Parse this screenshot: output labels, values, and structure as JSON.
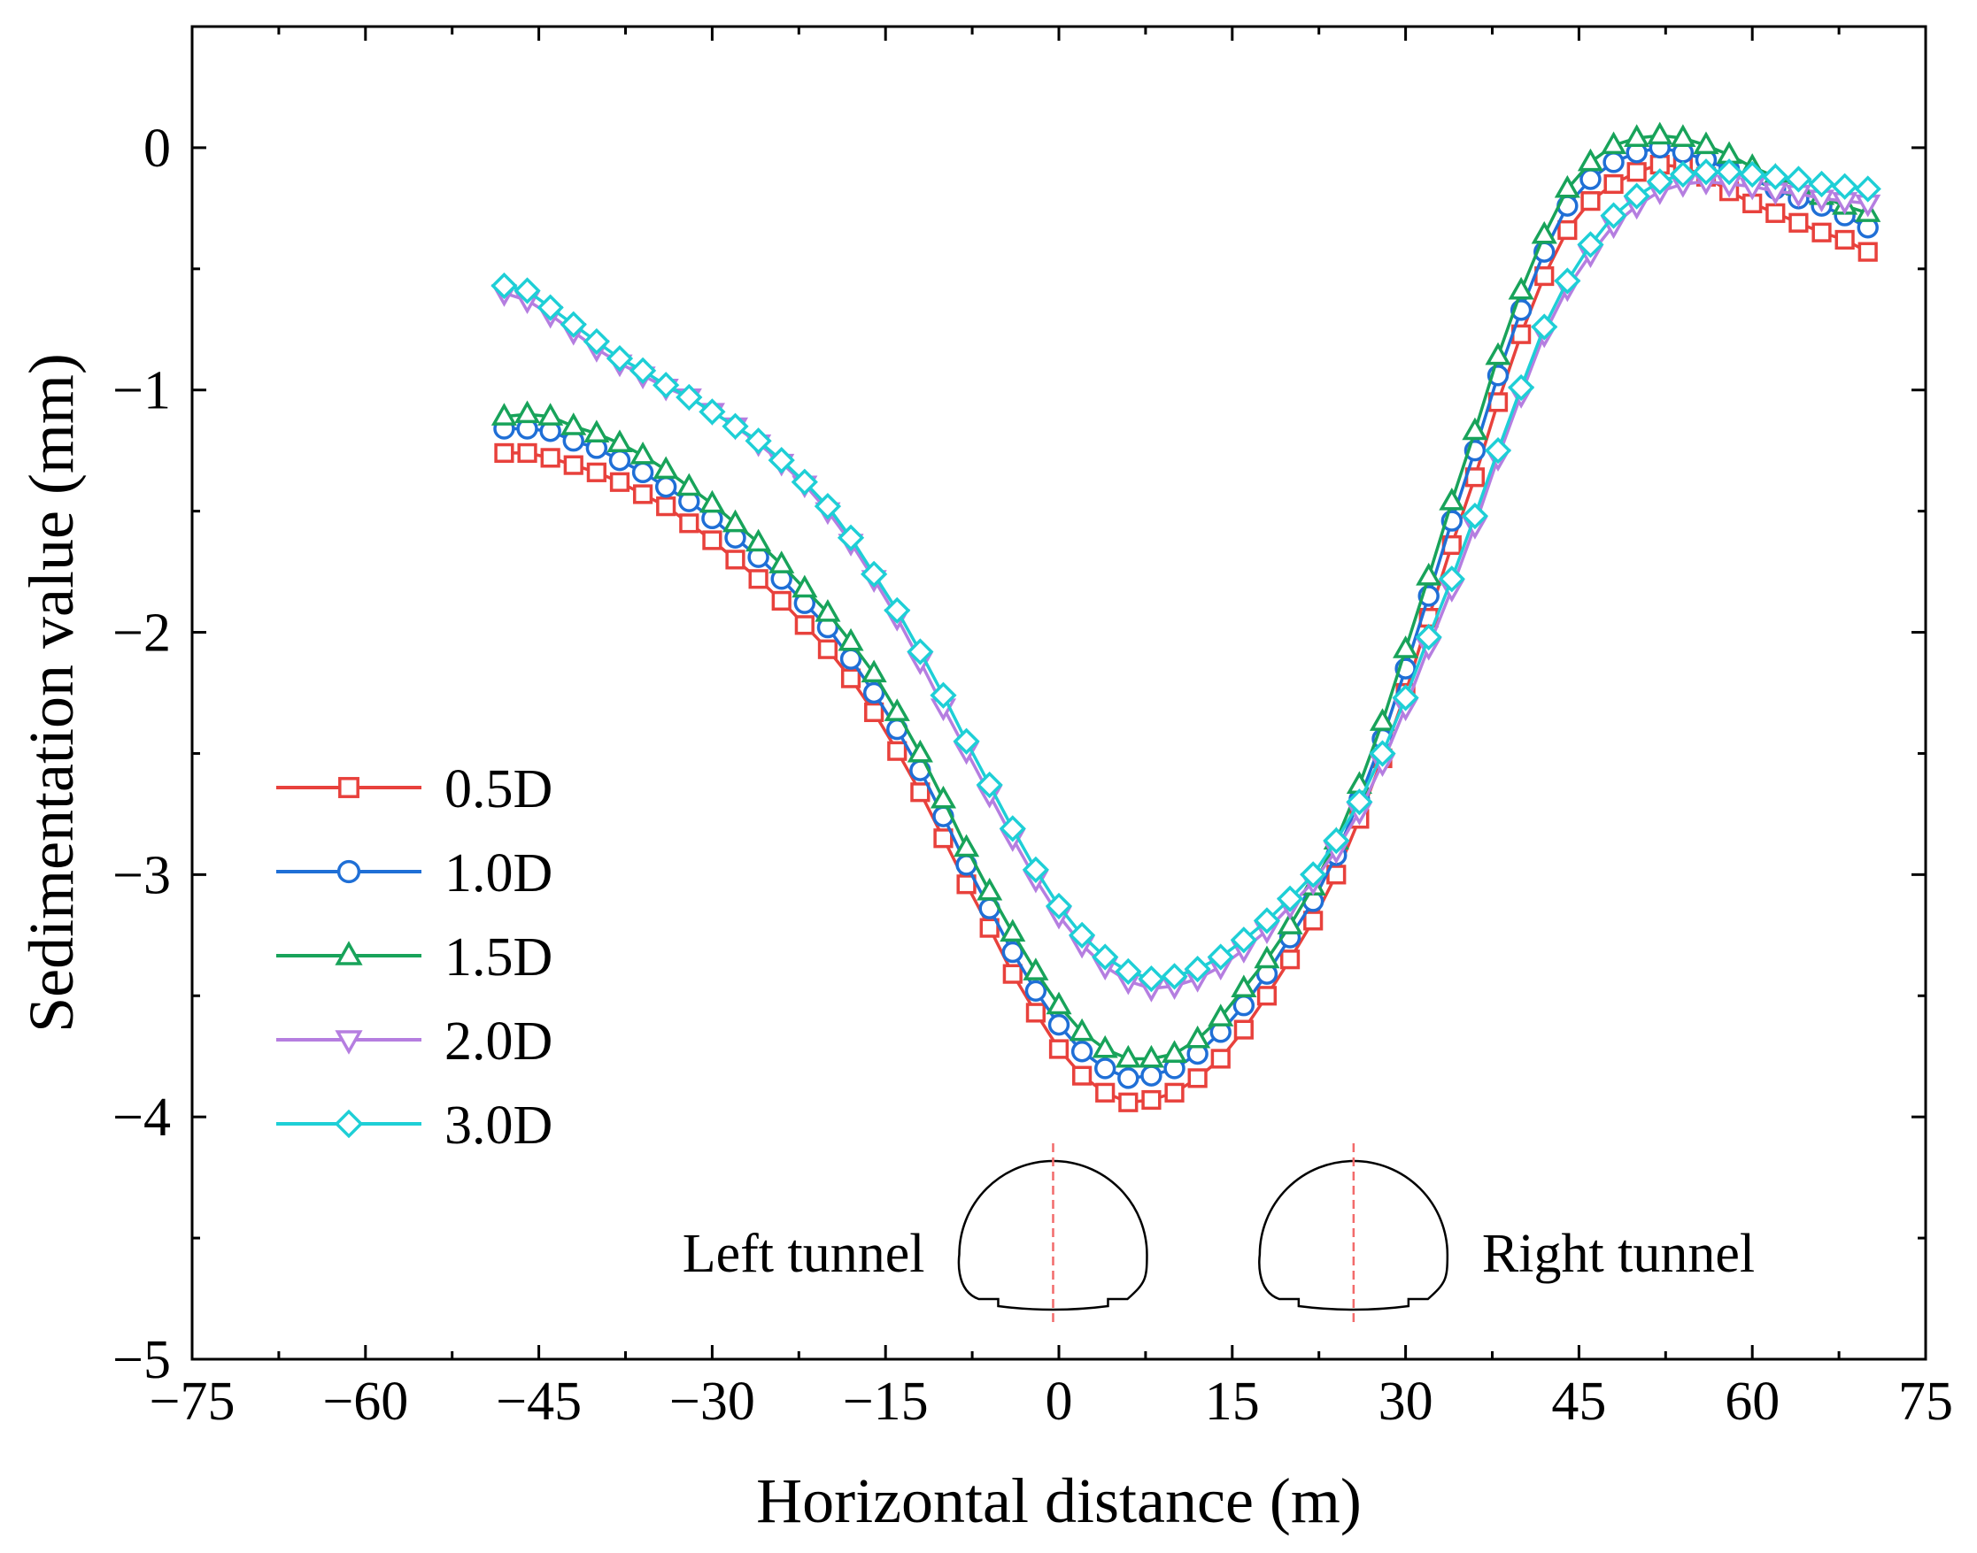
{
  "chart_data": {
    "type": "line",
    "title": "",
    "xlabel": "Horizontal distance (m)",
    "ylabel": "Sedimentation value (mm)",
    "xlim": [
      -75,
      75
    ],
    "ylim": [
      -5,
      0.5
    ],
    "xticks": [
      -75,
      -60,
      -45,
      -30,
      -15,
      0,
      15,
      30,
      45,
      60,
      75
    ],
    "yticks": [
      -5,
      -4,
      -3,
      -2,
      -1,
      0
    ],
    "tick_labels_x": [
      "−75",
      "−60",
      "−45",
      "−30",
      "−15",
      "0",
      "15",
      "30",
      "45",
      "60",
      "75"
    ],
    "tick_labels_y": [
      "−5",
      "−4",
      "−3",
      "−2",
      "−1",
      "0"
    ],
    "grid": false,
    "legend_position": "left",
    "x": [
      -48,
      -46,
      -44,
      -42,
      -40,
      -38,
      -36,
      -34,
      -32,
      -30,
      -28,
      -26,
      -24,
      -22,
      -20,
      -18,
      -16,
      -14,
      -12,
      -10,
      -8,
      -6,
      -4,
      -2,
      0,
      2,
      4,
      6,
      8,
      10,
      12,
      14,
      16,
      18,
      20,
      22,
      24,
      26,
      28,
      30,
      32,
      34,
      36,
      38,
      40,
      42,
      44,
      46,
      48,
      50,
      52,
      54,
      56,
      58,
      60,
      62,
      64,
      66,
      68,
      70
    ],
    "series": [
      {
        "name": "0.5D",
        "color": "#e8413c",
        "marker": "square",
        "values": [
          -1.26,
          -1.26,
          -1.28,
          -1.31,
          -1.34,
          -1.38,
          -1.43,
          -1.48,
          -1.55,
          -1.62,
          -1.7,
          -1.78,
          -1.87,
          -1.97,
          -2.07,
          -2.19,
          -2.33,
          -2.49,
          -2.66,
          -2.85,
          -3.04,
          -3.22,
          -3.41,
          -3.57,
          -3.72,
          -3.83,
          -3.9,
          -3.94,
          -3.93,
          -3.9,
          -3.84,
          -3.76,
          -3.64,
          -3.5,
          -3.35,
          -3.19,
          -3.0,
          -2.77,
          -2.52,
          -2.25,
          -1.94,
          -1.64,
          -1.36,
          -1.05,
          -0.77,
          -0.53,
          -0.34,
          -0.22,
          -0.15,
          -0.1,
          -0.07,
          -0.08,
          -0.12,
          -0.18,
          -0.23,
          -0.27,
          -0.31,
          -0.35,
          -0.38,
          -0.43
        ]
      },
      {
        "name": "1.0D",
        "color": "#1f6fd6",
        "marker": "circle",
        "values": [
          -1.16,
          -1.16,
          -1.17,
          -1.21,
          -1.24,
          -1.29,
          -1.34,
          -1.4,
          -1.46,
          -1.53,
          -1.61,
          -1.69,
          -1.78,
          -1.88,
          -1.98,
          -2.11,
          -2.25,
          -2.4,
          -2.57,
          -2.76,
          -2.96,
          -3.14,
          -3.32,
          -3.48,
          -3.62,
          -3.73,
          -3.8,
          -3.84,
          -3.83,
          -3.8,
          -3.74,
          -3.65,
          -3.54,
          -3.41,
          -3.26,
          -3.11,
          -2.92,
          -2.69,
          -2.44,
          -2.15,
          -1.85,
          -1.54,
          -1.25,
          -0.94,
          -0.67,
          -0.43,
          -0.24,
          -0.13,
          -0.06,
          -0.02,
          0.0,
          -0.02,
          -0.05,
          -0.09,
          -0.13,
          -0.17,
          -0.21,
          -0.24,
          -0.28,
          -0.33
        ]
      },
      {
        "name": "1.5D",
        "color": "#18a35a",
        "marker": "triangle-up",
        "values": [
          -1.11,
          -1.1,
          -1.11,
          -1.15,
          -1.18,
          -1.22,
          -1.27,
          -1.33,
          -1.4,
          -1.47,
          -1.55,
          -1.63,
          -1.72,
          -1.82,
          -1.92,
          -2.04,
          -2.17,
          -2.33,
          -2.5,
          -2.69,
          -2.89,
          -3.07,
          -3.24,
          -3.4,
          -3.54,
          -3.65,
          -3.72,
          -3.76,
          -3.76,
          -3.74,
          -3.68,
          -3.59,
          -3.47,
          -3.35,
          -3.21,
          -3.05,
          -2.86,
          -2.63,
          -2.37,
          -2.07,
          -1.77,
          -1.46,
          -1.17,
          -0.86,
          -0.59,
          -0.36,
          -0.17,
          -0.06,
          0.01,
          0.04,
          0.05,
          0.04,
          0.01,
          -0.03,
          -0.08,
          -0.12,
          -0.16,
          -0.2,
          -0.24,
          -0.27
        ]
      },
      {
        "name": "2.0D",
        "color": "#b57ee0",
        "marker": "triangle-down",
        "values": [
          -0.6,
          -0.63,
          -0.69,
          -0.76,
          -0.83,
          -0.89,
          -0.94,
          -0.99,
          -1.03,
          -1.09,
          -1.15,
          -1.22,
          -1.3,
          -1.39,
          -1.5,
          -1.63,
          -1.78,
          -1.94,
          -2.12,
          -2.31,
          -2.49,
          -2.67,
          -2.85,
          -3.02,
          -3.17,
          -3.29,
          -3.38,
          -3.44,
          -3.47,
          -3.46,
          -3.43,
          -3.38,
          -3.31,
          -3.23,
          -3.13,
          -3.03,
          -2.9,
          -2.74,
          -2.54,
          -2.31,
          -2.06,
          -1.82,
          -1.56,
          -1.28,
          -1.02,
          -0.77,
          -0.58,
          -0.44,
          -0.32,
          -0.24,
          -0.18,
          -0.15,
          -0.14,
          -0.15,
          -0.16,
          -0.18,
          -0.19,
          -0.21,
          -0.22,
          -0.23
        ]
      },
      {
        "name": "3.0D",
        "color": "#1ecfd6",
        "marker": "diamond",
        "values": [
          -0.57,
          -0.59,
          -0.66,
          -0.73,
          -0.8,
          -0.87,
          -0.92,
          -0.98,
          -1.03,
          -1.09,
          -1.15,
          -1.21,
          -1.29,
          -1.38,
          -1.48,
          -1.61,
          -1.76,
          -1.91,
          -2.08,
          -2.26,
          -2.45,
          -2.63,
          -2.81,
          -2.98,
          -3.13,
          -3.25,
          -3.34,
          -3.4,
          -3.43,
          -3.42,
          -3.39,
          -3.34,
          -3.27,
          -3.19,
          -3.1,
          -3.0,
          -2.86,
          -2.7,
          -2.5,
          -2.27,
          -2.02,
          -1.78,
          -1.52,
          -1.25,
          -0.99,
          -0.74,
          -0.55,
          -0.4,
          -0.28,
          -0.2,
          -0.14,
          -0.11,
          -0.1,
          -0.1,
          -0.11,
          -0.12,
          -0.13,
          -0.15,
          -0.16,
          -0.17
        ]
      }
    ],
    "annotations": [
      {
        "text": "Left tunnel",
        "shape": "tunnel-outline",
        "centerline_x": -0.5
      },
      {
        "text": "Right tunnel",
        "shape": "tunnel-outline",
        "centerline_x": 25.5
      }
    ]
  }
}
